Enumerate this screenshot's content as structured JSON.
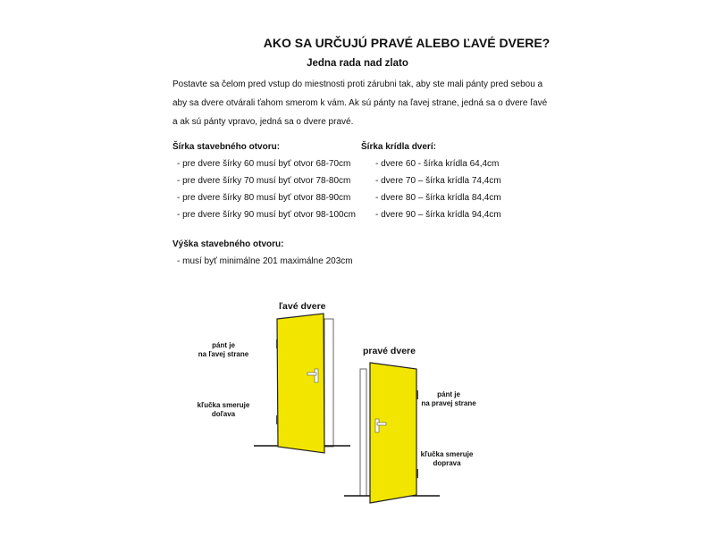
{
  "title": "AKO SA URČUJÚ PRAVÉ ALEBO ĽAVÉ DVERE?",
  "subtitle": "Jedna rada nad zlato",
  "intro": "Postavte sa čelom pred vstup do miestnosti proti zárubni tak, aby ste mali pánty pred sebou a aby sa dvere otvárali ťahom smerom k vám. Ak sú pánty na ľavej strane, jedná sa o dvere ľavé a ak sú pánty vpravo, jedná sa o dvere pravé.",
  "opening_width": {
    "heading": "Šírka stavebného otvoru:",
    "items": [
      "-   pre dvere šírky 60 musí byť otvor 68-70cm",
      "-   pre dvere šírky 70 musí byť otvor 78-80cm",
      "-   pre dvere šírky 80 musí byť otvor 88-90cm",
      "-   pre dvere šírky 90 musí byť otvor 98-100cm"
    ]
  },
  "leaf_width": {
    "heading": "Šírka krídla dverí:",
    "items": [
      "-   dvere 60 - šírka krídla 64,4cm",
      "-   dvere 70 – šírka krídla 74,4cm",
      "-   dvere 80 – šírka krídla 84,4cm",
      "-   dvere 90 – šírka krídla 94,4cm"
    ]
  },
  "opening_height": {
    "heading": "Výška stavebného otvoru:",
    "items": [
      "- musí byť minimálne 201 maximálne 203cm"
    ]
  },
  "figure": {
    "left_door": {
      "title": "ľavé dvere",
      "hinge_label": [
        "pánt je",
        "na ľavej strane"
      ],
      "handle_label": [
        "kľučka smeruje",
        "doľava"
      ]
    },
    "right_door": {
      "title": "pravé dvere",
      "hinge_label": [
        "pánt je",
        "na pravej strane"
      ],
      "handle_label": [
        "kľučka smeruje",
        "doprava"
      ]
    },
    "door_color": "#f2e600"
  }
}
